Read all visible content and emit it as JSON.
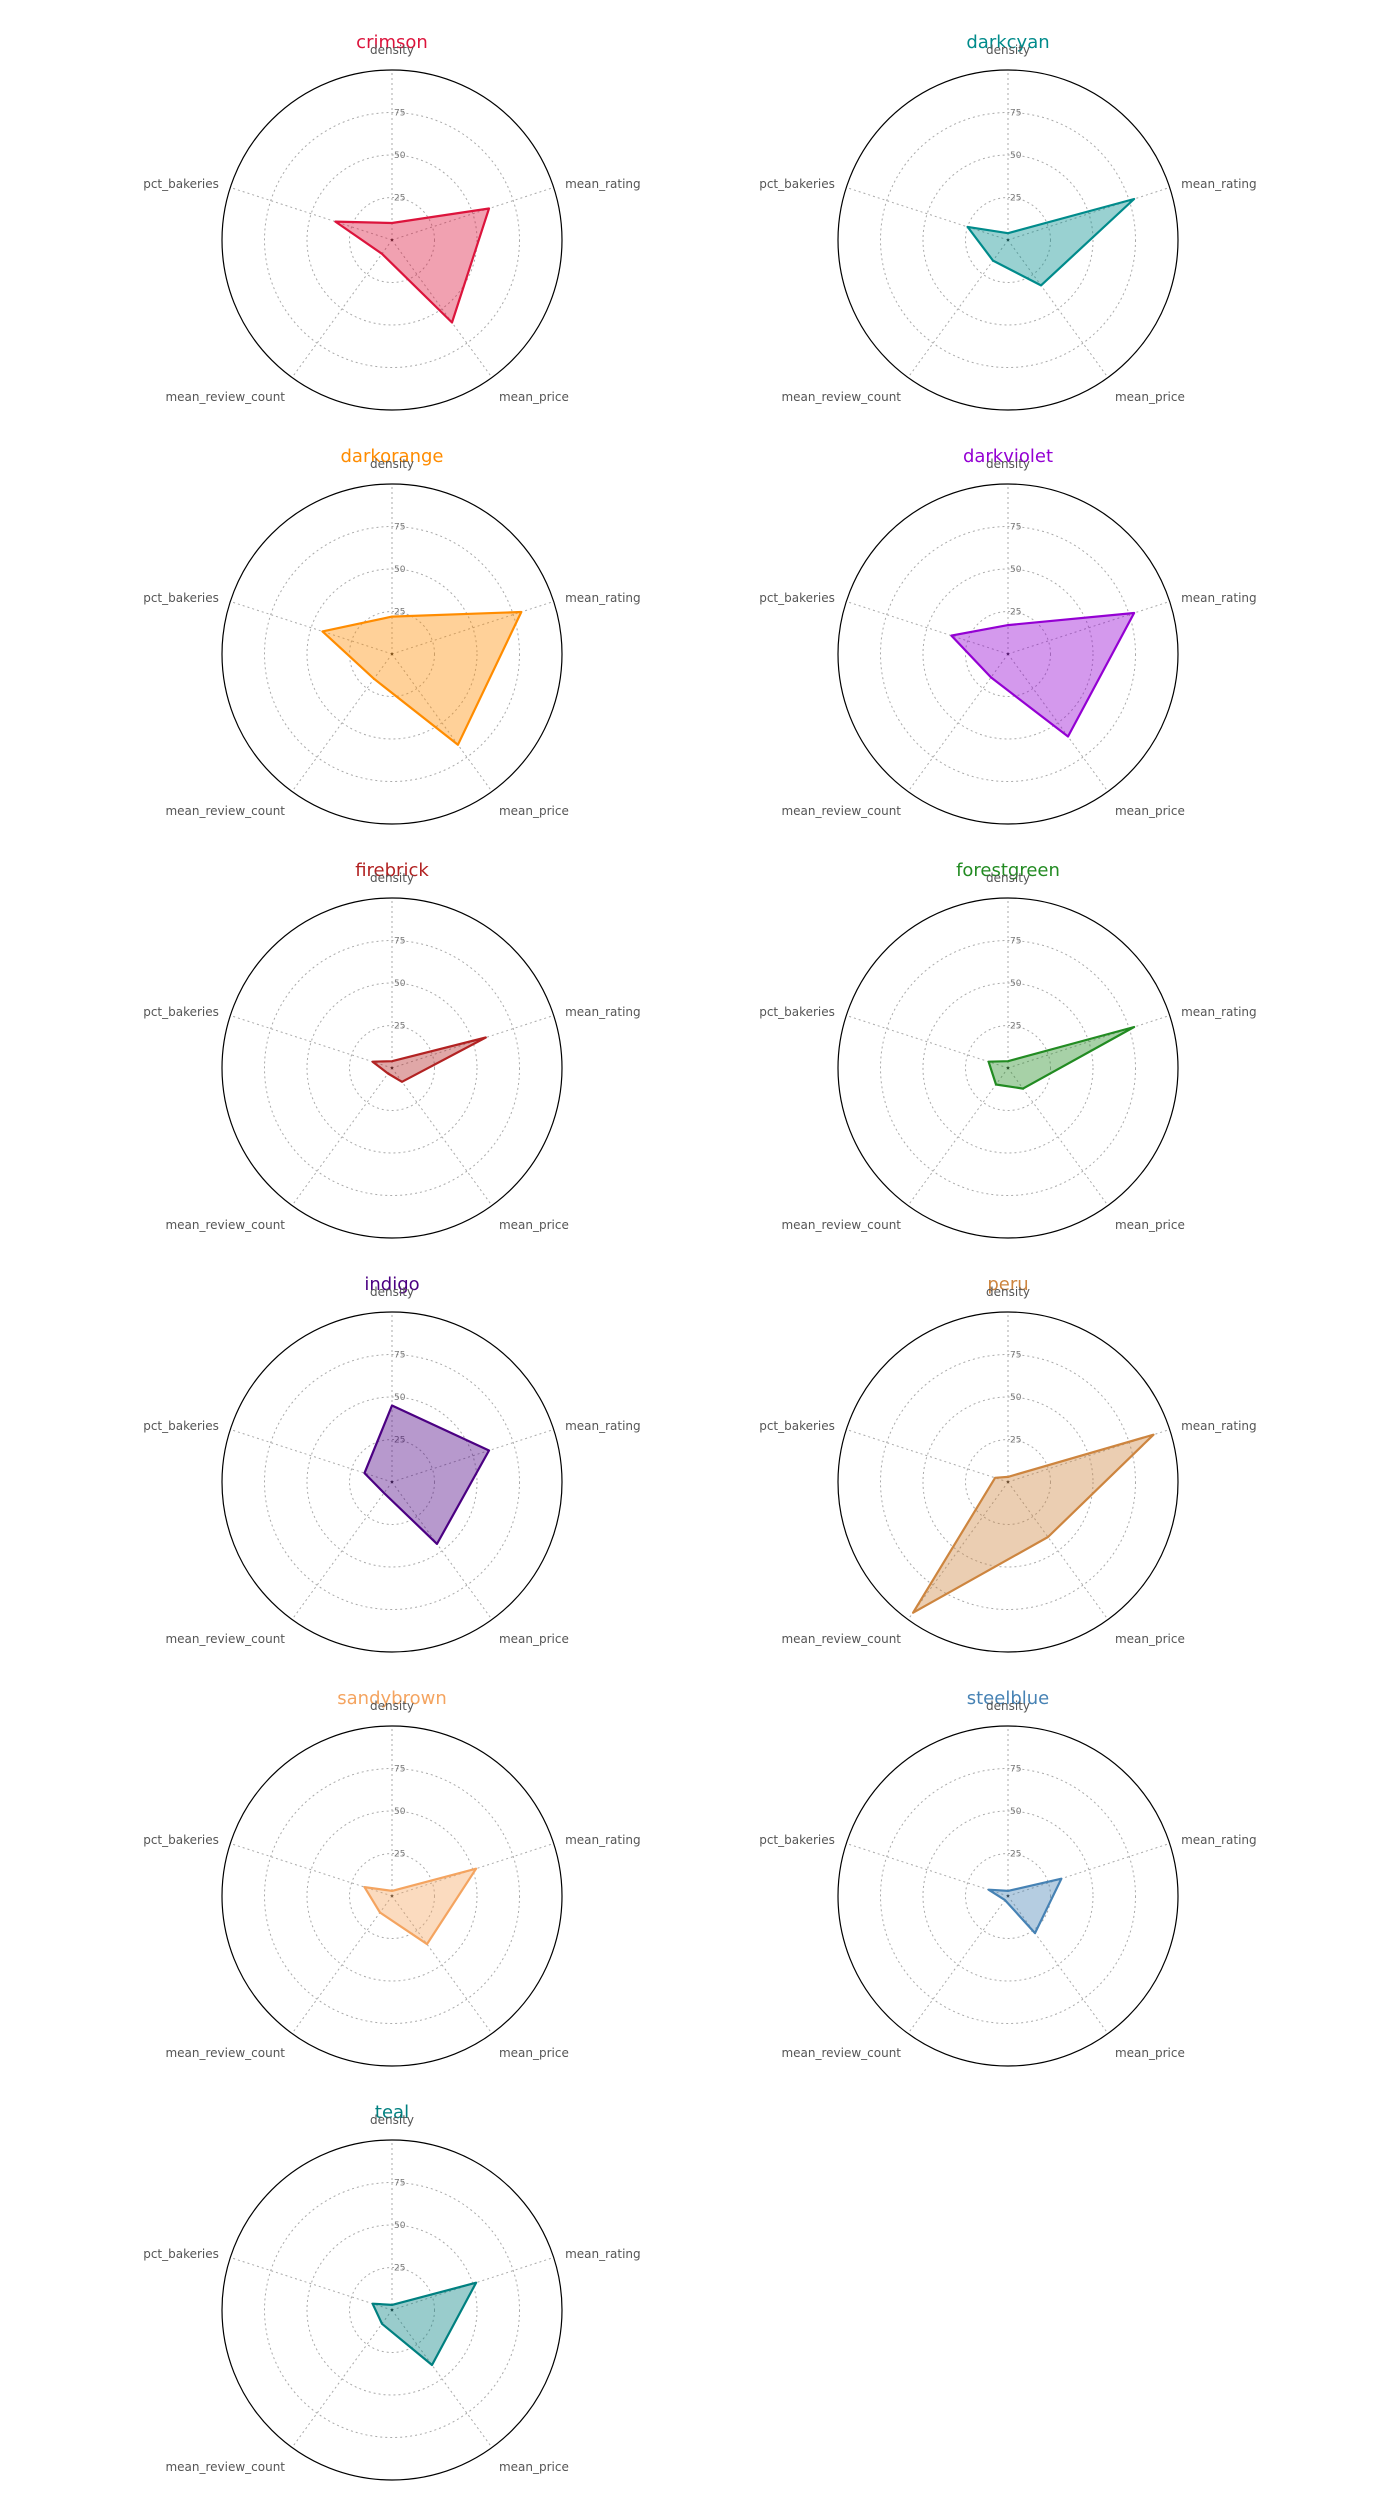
{
  "chart_data": {
    "type": "radar",
    "axes": [
      "density",
      "mean_rating",
      "mean_price",
      "mean_review_count",
      "pct_bakeries"
    ],
    "rlim": [
      0,
      100
    ],
    "rticks": [
      25,
      50,
      75
    ],
    "rtick_labels": [
      "25",
      "50",
      "75"
    ],
    "grid": true,
    "layout": {
      "rows": 6,
      "cols": 2
    },
    "panels": [
      {
        "title": "crimson",
        "color": "#dc143c",
        "values": [
          10,
          60,
          60,
          10,
          35
        ]
      },
      {
        "title": "darkcyan",
        "color": "#008b8b",
        "values": [
          4,
          78,
          33,
          15,
          25
        ]
      },
      {
        "title": "darkorange",
        "color": "#ff8c00",
        "values": [
          22,
          80,
          66,
          18,
          43
        ]
      },
      {
        "title": "darkviolet",
        "color": "#9400d3",
        "values": [
          17,
          78,
          60,
          17,
          35
        ]
      },
      {
        "title": "firebrick",
        "color": "#b22222",
        "values": [
          4,
          58,
          10,
          4,
          12
        ]
      },
      {
        "title": "forestgreen",
        "color": "#228b22",
        "values": [
          4,
          78,
          15,
          12,
          12
        ]
      },
      {
        "title": "indigo",
        "color": "#4b0082",
        "values": [
          45,
          60,
          45,
          8,
          17
        ]
      },
      {
        "title": "peru",
        "color": "#cd853f",
        "values": [
          3,
          90,
          40,
          95,
          8
        ]
      },
      {
        "title": "sandybrown",
        "color": "#f4a460",
        "values": [
          3,
          52,
          35,
          12,
          17
        ]
      },
      {
        "title": "steelblue",
        "color": "#4682b4",
        "values": [
          3,
          33,
          27,
          3,
          12
        ]
      },
      {
        "title": "teal",
        "color": "#008080",
        "values": [
          3,
          52,
          40,
          10,
          12
        ]
      }
    ]
  }
}
